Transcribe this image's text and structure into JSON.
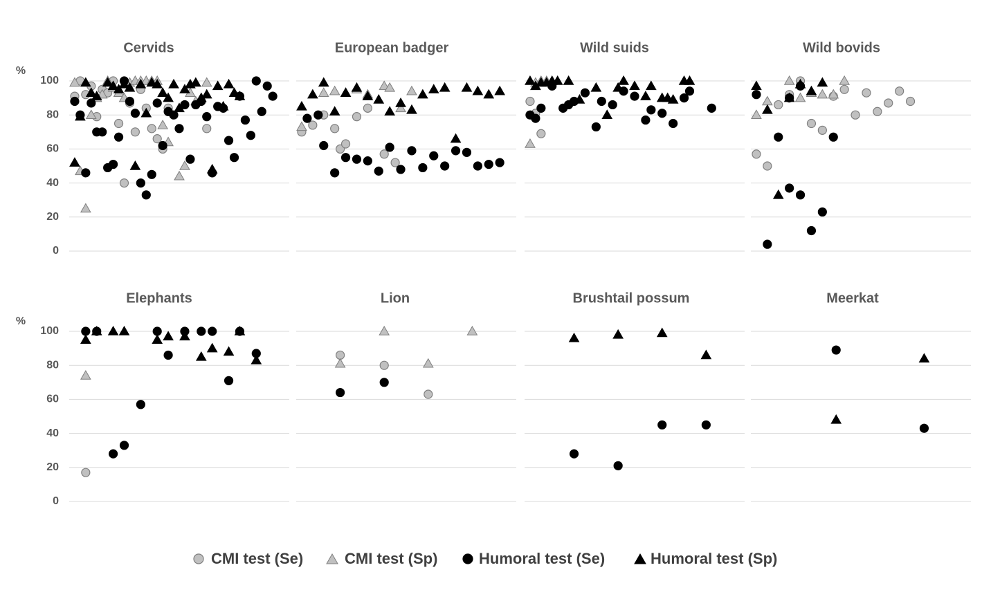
{
  "chart_data": [
    {
      "type": "scatter",
      "title": "Cervids",
      "ylabel": "%",
      "ytick_labels": true,
      "grid": true,
      "xlim": [
        0,
        40
      ],
      "ylim": [
        0,
        105
      ],
      "yticks": [
        0,
        20,
        40,
        60,
        80,
        100
      ],
      "series": [
        {
          "name": "CMI test (Se)",
          "marker": "circle",
          "color": "#c0c0c0",
          "x": [
            1,
            2,
            3,
            4,
            5,
            6,
            7,
            8,
            9,
            10,
            11,
            12,
            13,
            14,
            15,
            16,
            17,
            18,
            25
          ],
          "values": [
            91,
            100,
            92,
            97,
            79,
            95,
            93,
            100,
            75,
            40,
            87,
            70,
            95,
            84,
            72,
            66,
            60,
            84,
            72
          ]
        },
        {
          "name": "CMI test (Sp)",
          "marker": "triangle",
          "color": "#c0c0c0",
          "x": [
            1,
            2,
            3,
            4,
            5,
            6,
            7,
            8,
            9,
            10,
            11,
            12,
            13,
            14,
            15,
            16,
            17,
            18,
            20,
            21,
            22,
            23,
            25
          ],
          "values": [
            99,
            47,
            25,
            80,
            90,
            92,
            100,
            96,
            93,
            90,
            99,
            100,
            100,
            100,
            100,
            100,
            74,
            64,
            44,
            50,
            93,
            88,
            99
          ]
        },
        {
          "name": "Humoral test (Se)",
          "marker": "circle",
          "color": "#000000",
          "x": [
            1,
            2,
            3,
            4,
            5,
            6,
            7,
            8,
            9,
            10,
            11,
            12,
            13,
            14,
            15,
            16,
            17,
            18,
            19,
            20,
            21,
            22,
            23,
            24,
            25,
            26,
            27,
            28,
            29,
            30,
            31,
            32,
            33,
            34,
            35,
            36,
            37
          ],
          "values": [
            88,
            80,
            46,
            87,
            70,
            70,
            49,
            51,
            67,
            100,
            88,
            81,
            40,
            33,
            45,
            87,
            62,
            82,
            80,
            72,
            86,
            54,
            86,
            88,
            79,
            46,
            85,
            84,
            65,
            55,
            91,
            77,
            68,
            100,
            82,
            97,
            91
          ]
        },
        {
          "name": "Humoral test (Sp)",
          "marker": "triangle",
          "color": "#000000",
          "x": [
            1,
            2,
            3,
            4,
            5,
            7,
            8,
            9,
            10,
            11,
            12,
            13,
            14,
            15,
            16,
            17,
            18,
            19,
            20,
            21,
            22,
            23,
            24,
            25,
            26,
            27,
            28,
            29,
            30,
            31
          ],
          "values": [
            52,
            79,
            99,
            93,
            91,
            99,
            97,
            95,
            98,
            96,
            50,
            98,
            81,
            99,
            98,
            93,
            90,
            98,
            84,
            95,
            98,
            99,
            90,
            92,
            48,
            97,
            85,
            98,
            93,
            91
          ]
        }
      ]
    },
    {
      "type": "scatter",
      "title": "European badger",
      "ytick_labels": false,
      "grid": true,
      "xlim": [
        0,
        40
      ],
      "ylim": [
        0,
        105
      ],
      "yticks": [
        0,
        20,
        40,
        60,
        80,
        100
      ],
      "series": [
        {
          "name": "CMI test (Se)",
          "marker": "circle",
          "color": "#c0c0c0",
          "x": [
            1,
            3,
            5,
            7,
            8,
            9,
            11,
            13,
            16,
            18
          ],
          "values": [
            70,
            74,
            80,
            72,
            60,
            63,
            79,
            84,
            57,
            52
          ]
        },
        {
          "name": "CMI test (Sp)",
          "marker": "triangle",
          "color": "#c0c0c0",
          "x": [
            1,
            5,
            7,
            9,
            11,
            13,
            16,
            17,
            19,
            21
          ],
          "values": [
            73,
            93,
            94,
            93,
            95,
            92,
            97,
            96,
            84,
            94
          ]
        },
        {
          "name": "Humoral test (Se)",
          "marker": "circle",
          "color": "#000000",
          "x": [
            2,
            4,
            5,
            7,
            9,
            11,
            13,
            15,
            17,
            19,
            21,
            23,
            25,
            27,
            29,
            31,
            33,
            35,
            37
          ],
          "values": [
            78,
            80,
            62,
            46,
            55,
            54,
            53,
            47,
            61,
            48,
            59,
            49,
            56,
            50,
            59,
            58,
            50,
            51,
            52
          ]
        },
        {
          "name": "Humoral test (Sp)",
          "marker": "triangle",
          "color": "#000000",
          "x": [
            1,
            3,
            5,
            7,
            9,
            11,
            13,
            15,
            17,
            19,
            21,
            23,
            25,
            27,
            29,
            31,
            33,
            35,
            37
          ],
          "values": [
            85,
            92,
            99,
            82,
            93,
            96,
            91,
            89,
            82,
            87,
            83,
            92,
            95,
            96,
            66,
            96,
            94,
            92,
            94
          ]
        }
      ]
    },
    {
      "type": "scatter",
      "title": "Wild suids",
      "ytick_labels": false,
      "grid": true,
      "xlim": [
        0,
        40
      ],
      "ylim": [
        0,
        105
      ],
      "yticks": [
        0,
        20,
        40,
        60,
        80,
        100
      ],
      "series": [
        {
          "name": "CMI test (Se)",
          "marker": "circle",
          "color": "#c0c0c0",
          "x": [
            1,
            2,
            3
          ],
          "values": [
            88,
            81,
            69
          ]
        },
        {
          "name": "CMI test (Sp)",
          "marker": "triangle",
          "color": "#c0c0c0",
          "x": [
            1,
            2,
            3,
            4
          ],
          "values": [
            63,
            99,
            100,
            100
          ]
        },
        {
          "name": "Humoral test (Se)",
          "marker": "circle",
          "color": "#000000",
          "x": [
            1,
            2,
            3,
            5,
            7,
            8,
            9,
            11,
            13,
            14,
            16,
            18,
            20,
            22,
            23,
            25,
            27,
            29,
            30,
            34
          ],
          "values": [
            80,
            78,
            84,
            97,
            84,
            86,
            88,
            93,
            73,
            88,
            86,
            94,
            91,
            77,
            83,
            81,
            75,
            90,
            94,
            84
          ]
        },
        {
          "name": "Humoral test (Sp)",
          "marker": "triangle",
          "color": "#000000",
          "x": [
            1,
            2,
            3,
            4,
            5,
            6,
            8,
            10,
            13,
            15,
            17,
            18,
            20,
            22,
            23,
            25,
            26,
            27,
            29,
            30
          ],
          "values": [
            100,
            97,
            99,
            99,
            100,
            100,
            100,
            89,
            96,
            80,
            96,
            100,
            97,
            91,
            97,
            90,
            90,
            89,
            100,
            100
          ]
        }
      ]
    },
    {
      "type": "scatter",
      "title": "Wild bovids",
      "ytick_labels": false,
      "grid": true,
      "xlim": [
        0,
        40
      ],
      "ylim": [
        0,
        105
      ],
      "yticks": [
        0,
        20,
        40,
        60,
        80,
        100
      ],
      "series": [
        {
          "name": "CMI test (Se)",
          "marker": "circle",
          "color": "#c0c0c0",
          "x": [
            1,
            3,
            5,
            7,
            9,
            11,
            13,
            15,
            17,
            19,
            21,
            23,
            25,
            27,
            29
          ],
          "values": [
            57,
            50,
            86,
            92,
            100,
            75,
            71,
            91,
            95,
            80,
            93,
            82,
            87,
            94,
            88
          ]
        },
        {
          "name": "CMI test (Sp)",
          "marker": "triangle",
          "color": "#c0c0c0",
          "x": [
            1,
            3,
            7,
            9,
            11,
            13,
            15,
            17
          ],
          "values": [
            80,
            88,
            100,
            90,
            93,
            92,
            92,
            100
          ]
        },
        {
          "name": "Humoral test (Se)",
          "marker": "circle",
          "color": "#000000",
          "x": [
            1,
            3,
            5,
            7,
            7,
            9,
            9,
            11,
            13,
            15
          ],
          "values": [
            92,
            4,
            67,
            37,
            90,
            33,
            97,
            12,
            23,
            67
          ]
        },
        {
          "name": "Humoral test (Sp)",
          "marker": "triangle",
          "color": "#000000",
          "x": [
            1,
            3,
            5,
            7,
            9,
            11,
            13
          ],
          "values": [
            97,
            83,
            33,
            90,
            98,
            94,
            99
          ]
        }
      ]
    },
    {
      "type": "scatter",
      "title": "Elephants",
      "ylabel": "%",
      "ytick_labels": true,
      "grid": true,
      "xlim": [
        0,
        40
      ],
      "ylim": [
        0,
        105
      ],
      "yticks": [
        0,
        20,
        40,
        60,
        80,
        100
      ],
      "series": [
        {
          "name": "CMI test (Se)",
          "marker": "circle",
          "color": "#c0c0c0",
          "x": [
            3
          ],
          "values": [
            17
          ]
        },
        {
          "name": "CMI test (Sp)",
          "marker": "triangle",
          "color": "#c0c0c0",
          "x": [
            3
          ],
          "values": [
            74
          ]
        },
        {
          "name": "Humoral test (Se)",
          "marker": "circle",
          "color": "#000000",
          "x": [
            3,
            5,
            8,
            10,
            13,
            16,
            18,
            21,
            24,
            26,
            29,
            31,
            34
          ],
          "values": [
            100,
            100,
            28,
            33,
            57,
            100,
            86,
            100,
            100,
            100,
            71,
            100,
            87
          ]
        },
        {
          "name": "Humoral test (Sp)",
          "marker": "triangle",
          "color": "#000000",
          "x": [
            3,
            5,
            8,
            10,
            16,
            18,
            21,
            24,
            26,
            29,
            31,
            34
          ],
          "values": [
            95,
            100,
            100,
            100,
            95,
            97,
            97,
            85,
            90,
            88,
            100,
            83
          ]
        }
      ]
    },
    {
      "type": "scatter",
      "title": "Lion",
      "ytick_labels": false,
      "grid": true,
      "xlim": [
        0,
        40
      ],
      "ylim": [
        0,
        105
      ],
      "yticks": [
        0,
        20,
        40,
        60,
        80,
        100
      ],
      "series": [
        {
          "name": "CMI test (Se)",
          "marker": "circle",
          "color": "#c0c0c0",
          "x": [
            8,
            16,
            24
          ],
          "values": [
            86,
            80,
            63
          ]
        },
        {
          "name": "CMI test (Sp)",
          "marker": "triangle",
          "color": "#c0c0c0",
          "x": [
            8,
            16,
            24,
            32
          ],
          "values": [
            81,
            100,
            81,
            100
          ]
        },
        {
          "name": "Humoral test (Se)",
          "marker": "circle",
          "color": "#000000",
          "x": [
            8,
            16
          ],
          "values": [
            64,
            70
          ]
        }
      ]
    },
    {
      "type": "scatter",
      "title": "Brushtail possum",
      "ytick_labels": false,
      "grid": true,
      "xlim": [
        0,
        40
      ],
      "ylim": [
        0,
        105
      ],
      "yticks": [
        0,
        20,
        40,
        60,
        80,
        100
      ],
      "series": [
        {
          "name": "Humoral test (Se)",
          "marker": "circle",
          "color": "#000000",
          "x": [
            9,
            17,
            25,
            33
          ],
          "values": [
            28,
            21,
            45,
            45
          ]
        },
        {
          "name": "Humoral test (Sp)",
          "marker": "triangle",
          "color": "#000000",
          "x": [
            9,
            17,
            25,
            33
          ],
          "values": [
            96,
            98,
            99,
            86
          ]
        }
      ]
    },
    {
      "type": "scatter",
      "title": "Meerkat",
      "ytick_labels": false,
      "grid": true,
      "xlim": [
        0,
        40
      ],
      "ylim": [
        0,
        105
      ],
      "yticks": [
        0,
        20,
        40,
        60,
        80,
        100
      ],
      "series": [
        {
          "name": "Humoral test (Se)",
          "marker": "circle",
          "color": "#000000",
          "x": [
            15.5,
            31.5
          ],
          "values": [
            89,
            43
          ]
        },
        {
          "name": "Humoral test (Sp)",
          "marker": "triangle",
          "color": "#000000",
          "x": [
            15.5,
            31.5
          ],
          "values": [
            48,
            84
          ]
        }
      ]
    }
  ]
}
